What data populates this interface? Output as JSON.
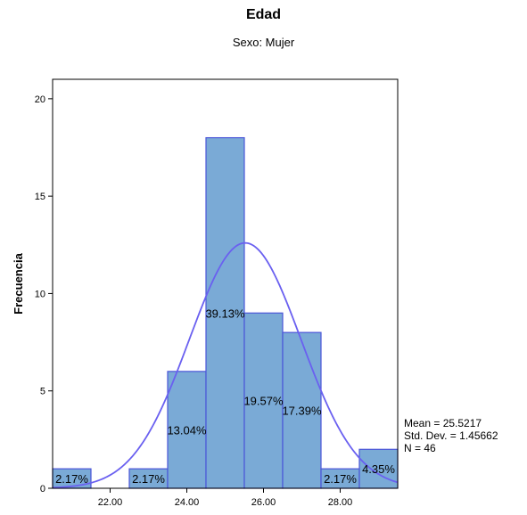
{
  "chart_data": {
    "type": "bar",
    "title": "Edad",
    "subtitle": "Sexo: Mujer",
    "xlabel": "",
    "ylabel": "Frecuencia",
    "xlim": [
      20.5,
      29.5
    ],
    "ylim": [
      0,
      21
    ],
    "x_ticks": [
      "22.00",
      "24.00",
      "26.00",
      "28.00"
    ],
    "y_ticks": [
      "0",
      "5",
      "10",
      "15",
      "20"
    ],
    "bin_width": 1,
    "bins": [
      {
        "center": 21,
        "count": 1,
        "label": "2.17%"
      },
      {
        "center": 23,
        "count": 1,
        "label": "2.17%"
      },
      {
        "center": 24,
        "count": 6,
        "label": "13.04%"
      },
      {
        "center": 25,
        "count": 18,
        "label": "39.13%"
      },
      {
        "center": 26,
        "count": 9,
        "label": "19.57%"
      },
      {
        "center": 27,
        "count": 8,
        "label": "17.39%"
      },
      {
        "center": 28,
        "count": 1,
        "label": "2.17%"
      },
      {
        "center": 29,
        "count": 2,
        "label": "4.35%"
      }
    ],
    "normal_curve": {
      "mean": 25.5217,
      "std": 1.45662,
      "n": 46
    },
    "bar_fill": "#7aaad6",
    "bar_stroke": "#4a55d8",
    "curve_color": "#6a60f0"
  },
  "stats": {
    "mean_text": "Mean = 25.5217",
    "std_text": "Std. Dev. = 1.45662",
    "n_text": "N = 46"
  }
}
